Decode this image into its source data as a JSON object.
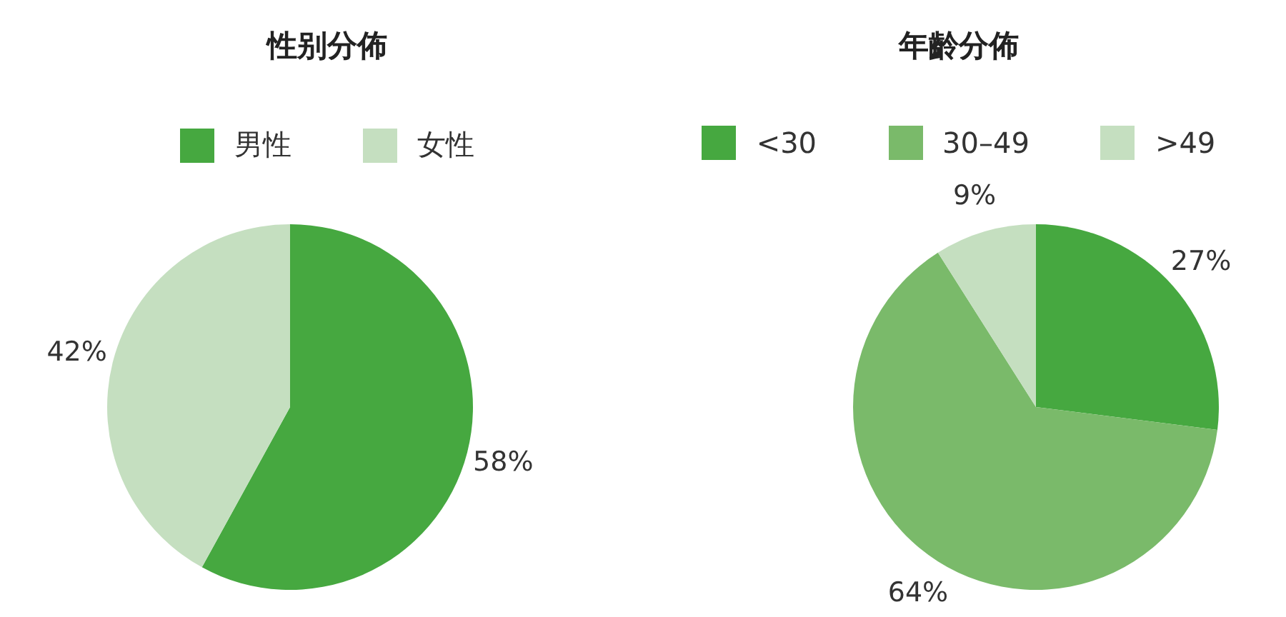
{
  "chart_data": [
    {
      "type": "pie",
      "title": "性别分佈",
      "categories": [
        "男性",
        "女性"
      ],
      "values": [
        58,
        42
      ],
      "colors": [
        "#46a840",
        "#c5dfc0"
      ],
      "value_labels": [
        "58%",
        "42%"
      ],
      "legend": "top"
    },
    {
      "type": "pie",
      "title": "年齡分佈",
      "categories": [
        "<30",
        "30–49",
        ">49"
      ],
      "values": [
        27,
        64,
        9
      ],
      "colors": [
        "#46a840",
        "#7aba6a",
        "#c5dfc0"
      ],
      "value_labels": [
        "27%",
        "64%",
        "9%"
      ],
      "legend": "top"
    }
  ]
}
